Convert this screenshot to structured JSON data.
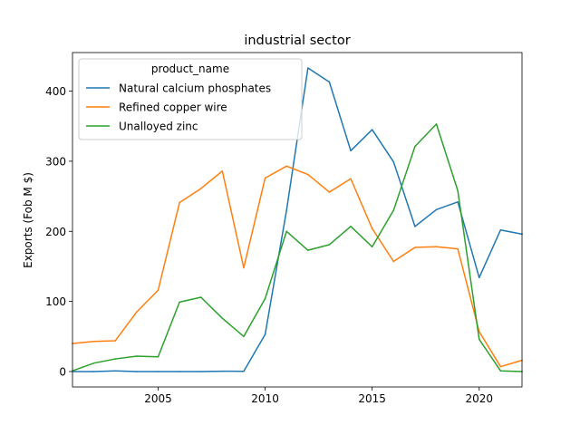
{
  "chart_data": {
    "type": "line",
    "title": "industrial sector",
    "xlabel": "",
    "ylabel": "Exports (Fob M $)",
    "xlim": [
      2001,
      2022
    ],
    "ylim": [
      -22,
      455
    ],
    "x_ticks": [
      2005,
      2010,
      2015,
      2020
    ],
    "y_ticks": [
      0,
      100,
      200,
      300,
      400
    ],
    "grid": false,
    "legend": {
      "title": "product_name",
      "placement": "top-left"
    },
    "x": [
      2001,
      2002,
      2003,
      2004,
      2005,
      2006,
      2007,
      2008,
      2009,
      2010,
      2011,
      2012,
      2013,
      2014,
      2015,
      2016,
      2017,
      2018,
      2019,
      2020,
      2021,
      2022
    ],
    "series": [
      {
        "name": "Natural calcium phosphates",
        "color": "#1f77b4",
        "values": [
          0,
          0,
          1,
          0,
          0,
          0,
          0,
          0.5,
          0.3,
          53,
          230,
          433,
          413,
          315,
          345,
          299,
          207,
          231,
          242,
          134,
          202,
          196
        ]
      },
      {
        "name": "Refined copper wire",
        "color": "#ff7f0e",
        "values": [
          40,
          43,
          44,
          85,
          116,
          241,
          261,
          286,
          148,
          276,
          293,
          281,
          256,
          275,
          204,
          157,
          177,
          178,
          175,
          57,
          7,
          16
        ]
      },
      {
        "name": "Unalloyed zinc",
        "color": "#2ca02c",
        "values": [
          1,
          12,
          18,
          22,
          21,
          99,
          106,
          76,
          50,
          104,
          200,
          173,
          181,
          207,
          178,
          230,
          321,
          353,
          258,
          46,
          1,
          0
        ]
      }
    ]
  }
}
